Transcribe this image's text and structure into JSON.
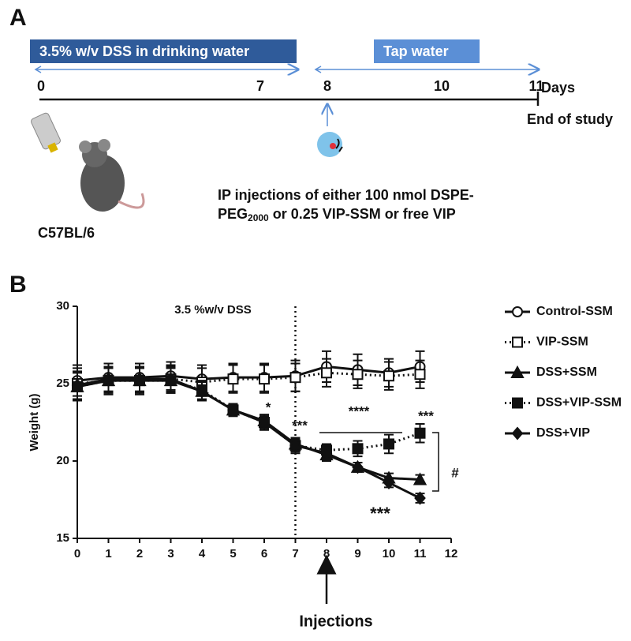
{
  "panel_a": {
    "label": "A",
    "dss_box": "3.5% w/v DSS in drinking water",
    "tap_box": "Tap water",
    "timeline_labels": [
      "0",
      "7",
      "8",
      "10",
      "11"
    ],
    "unit": "Days",
    "end_label": "End of study",
    "mouse_label": "C57BL/6",
    "injection_line1": "IP injections of either  100 nmol DSPE-",
    "injection_line2": [
      "PEG",
      "2000",
      " or 0.25 VIP-SSM  or free VIP"
    ]
  },
  "chart_data": {
    "type": "line",
    "panel_label": "B",
    "ylabel": "Weight (g)",
    "x": [
      0,
      1,
      2,
      3,
      4,
      5,
      6,
      7,
      8,
      9,
      10,
      11
    ],
    "xlim": [
      0,
      12
    ],
    "xticks": [
      0,
      1,
      2,
      3,
      4,
      5,
      6,
      7,
      8,
      9,
      10,
      11,
      12
    ],
    "ylim": [
      15,
      30
    ],
    "yticks": [
      15,
      20,
      25,
      30
    ],
    "legend": "right",
    "series": [
      {
        "name": "Control-SSM",
        "color": "#111111",
        "marker": "circle-open",
        "line_style": "solid",
        "values": [
          25.2,
          25.4,
          25.4,
          25.5,
          25.3,
          25.4,
          25.4,
          25.5,
          26.1,
          25.9,
          25.7,
          26.1
        ],
        "errors": [
          1.0,
          0.9,
          0.9,
          0.9,
          0.9,
          0.9,
          0.9,
          1.0,
          1.0,
          1.0,
          0.9,
          1.0
        ]
      },
      {
        "name": "VIP-SSM",
        "color": "#111111",
        "marker": "square-open",
        "line_style": "dotted",
        "values": [
          25.0,
          25.2,
          25.2,
          25.3,
          25.1,
          25.3,
          25.3,
          25.4,
          25.7,
          25.6,
          25.5,
          25.6
        ],
        "errors": [
          1.0,
          0.9,
          0.9,
          0.9,
          0.9,
          0.9,
          0.9,
          0.9,
          0.9,
          0.9,
          0.9,
          0.9
        ]
      },
      {
        "name": "DSS+SSM",
        "color": "#111111",
        "marker": "triangle",
        "line_style": "solid",
        "values": [
          24.8,
          25.2,
          25.2,
          25.2,
          24.5,
          23.3,
          22.6,
          21.1,
          20.4,
          19.6,
          18.9,
          18.8
        ],
        "errors": [
          0.9,
          0.8,
          0.8,
          0.8,
          0.6,
          0.4,
          0.4,
          0.4,
          0.4,
          0.3,
          0.3,
          0.3
        ]
      },
      {
        "name": "DSS+VIP-SSM",
        "color": "#111111",
        "marker": "square",
        "line_style": "dotted",
        "values": [
          24.8,
          25.2,
          25.2,
          25.2,
          24.6,
          23.3,
          22.5,
          21.0,
          20.7,
          20.8,
          21.1,
          21.8
        ],
        "errors": [
          0.9,
          0.8,
          0.8,
          0.8,
          0.6,
          0.4,
          0.5,
          0.5,
          0.4,
          0.5,
          0.6,
          0.6
        ]
      },
      {
        "name": "DSS+VIP",
        "color": "#111111",
        "marker": "diamond",
        "line_style": "solid",
        "values": [
          24.9,
          25.3,
          25.3,
          25.3,
          24.5,
          23.3,
          22.5,
          21.0,
          20.5,
          19.6,
          18.6,
          17.6
        ],
        "errors": [
          0.9,
          0.8,
          0.8,
          0.8,
          0.6,
          0.4,
          0.4,
          0.4,
          0.4,
          0.3,
          0.3,
          0.3
        ]
      }
    ],
    "annotations": [
      "3.5 %w/v DSS",
      "*",
      "***",
      "****",
      "***",
      "***",
      "#"
    ],
    "injection_label": "Injections"
  }
}
